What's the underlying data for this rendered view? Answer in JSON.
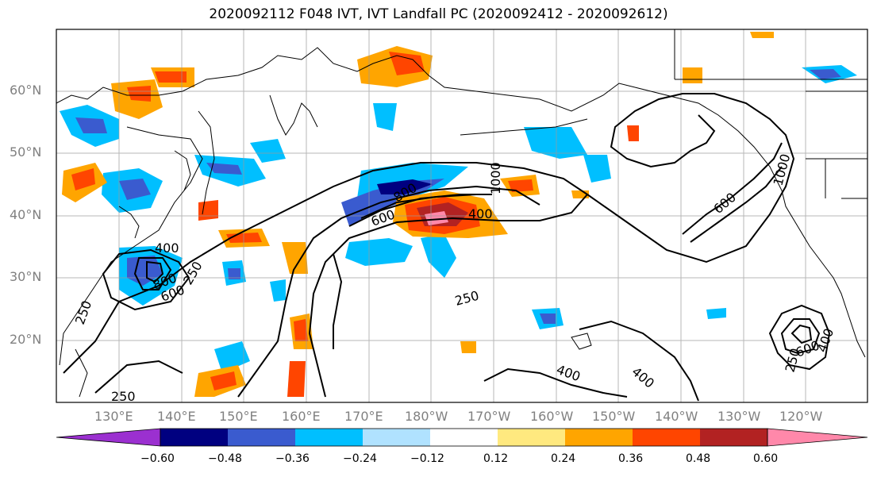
{
  "title": "2020092112 F048 IVT, IVT Landfall PC (2020092412 - 2020092612)",
  "lat_labels": [
    "60°N",
    "50°N",
    "40°N",
    "30°N",
    "20°N"
  ],
  "lon_labels": [
    "130°E",
    "140°E",
    "150°E",
    "160°E",
    "170°E",
    "180°W",
    "170°W",
    "160°W",
    "150°W",
    "140°W",
    "130°W",
    "120°W"
  ],
  "contour_labels": [
    "250",
    "400",
    "600",
    "800",
    "1000"
  ],
  "colorbar": {
    "ticks": [
      "−0.60",
      "−0.48",
      "−0.36",
      "−0.24",
      "−0.12",
      "0.12",
      "0.24",
      "0.36",
      "0.48",
      "0.60"
    ],
    "colors": [
      "#9b30d0",
      "#000080",
      "#3a5bcf",
      "#00bfff",
      "#b0e2ff",
      "#ffffff",
      "#ffe97f",
      "#ffa500",
      "#ff4500",
      "#b22222",
      "#ff88aa"
    ]
  }
}
